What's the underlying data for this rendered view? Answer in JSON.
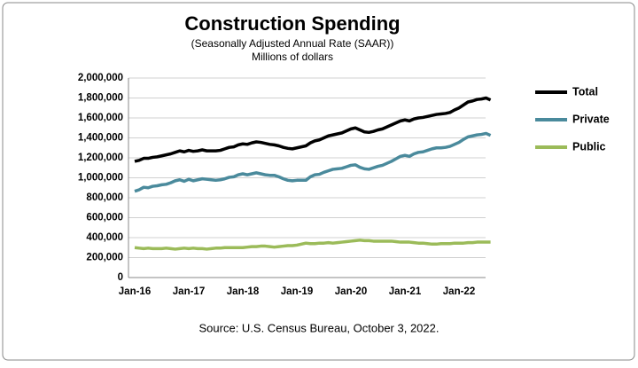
{
  "chart_data": {
    "type": "line",
    "title": "Construction Spending",
    "subtitle": "(Seasonally Adjusted Annual Rate (SAAR))",
    "y_label": "Millions of dollars",
    "source": "Source: U.S. Census Bureau, October 3, 2022.",
    "categories": [
      "Jan-16",
      null,
      null,
      null,
      null,
      null,
      null,
      null,
      null,
      null,
      null,
      null,
      "Jan-17",
      null,
      null,
      null,
      null,
      null,
      null,
      null,
      null,
      null,
      null,
      null,
      "Jan-18",
      null,
      null,
      null,
      null,
      null,
      null,
      null,
      null,
      null,
      null,
      null,
      "Jan-19",
      null,
      null,
      null,
      null,
      null,
      null,
      null,
      null,
      null,
      null,
      null,
      "Jan-20",
      null,
      null,
      null,
      null,
      null,
      null,
      null,
      null,
      null,
      null,
      null,
      "Jan-21",
      null,
      null,
      null,
      null,
      null,
      null,
      null,
      null,
      null,
      null,
      null,
      "Jan-22",
      null,
      null,
      null,
      null,
      null,
      null,
      null
    ],
    "series": [
      {
        "name": "Total",
        "color": "#000000",
        "values": [
          1165000,
          1175000,
          1195000,
          1195000,
          1205000,
          1210000,
          1220000,
          1230000,
          1240000,
          1255000,
          1270000,
          1260000,
          1275000,
          1265000,
          1270000,
          1280000,
          1270000,
          1270000,
          1270000,
          1275000,
          1290000,
          1305000,
          1310000,
          1330000,
          1340000,
          1335000,
          1350000,
          1360000,
          1355000,
          1345000,
          1335000,
          1330000,
          1320000,
          1305000,
          1295000,
          1290000,
          1300000,
          1310000,
          1320000,
          1350000,
          1370000,
          1380000,
          1400000,
          1420000,
          1430000,
          1440000,
          1450000,
          1470000,
          1490000,
          1500000,
          1480000,
          1460000,
          1455000,
          1465000,
          1480000,
          1490000,
          1510000,
          1530000,
          1550000,
          1570000,
          1580000,
          1570000,
          1590000,
          1600000,
          1605000,
          1615000,
          1625000,
          1635000,
          1640000,
          1645000,
          1655000,
          1680000,
          1700000,
          1730000,
          1760000,
          1770000,
          1785000,
          1790000,
          1800000,
          1780000
        ]
      },
      {
        "name": "Private",
        "color": "#4a8a9c",
        "values": [
          865000,
          880000,
          905000,
          900000,
          915000,
          920000,
          930000,
          935000,
          950000,
          970000,
          980000,
          965000,
          985000,
          970000,
          980000,
          990000,
          985000,
          980000,
          975000,
          980000,
          990000,
          1005000,
          1010000,
          1030000,
          1040000,
          1030000,
          1040000,
          1050000,
          1040000,
          1030000,
          1025000,
          1025000,
          1010000,
          990000,
          975000,
          970000,
          975000,
          975000,
          975000,
          1010000,
          1030000,
          1035000,
          1055000,
          1070000,
          1085000,
          1090000,
          1095000,
          1110000,
          1125000,
          1130000,
          1105000,
          1090000,
          1085000,
          1100000,
          1115000,
          1125000,
          1145000,
          1165000,
          1190000,
          1215000,
          1225000,
          1215000,
          1240000,
          1255000,
          1260000,
          1275000,
          1290000,
          1300000,
          1300000,
          1305000,
          1315000,
          1335000,
          1355000,
          1385000,
          1410000,
          1420000,
          1430000,
          1435000,
          1445000,
          1425000
        ]
      },
      {
        "name": "Public",
        "color": "#9bbb59",
        "values": [
          300000,
          295000,
          290000,
          295000,
          290000,
          290000,
          290000,
          295000,
          290000,
          285000,
          290000,
          295000,
          290000,
          295000,
          290000,
          290000,
          285000,
          290000,
          295000,
          295000,
          300000,
          300000,
          300000,
          300000,
          300000,
          305000,
          310000,
          310000,
          315000,
          315000,
          310000,
          305000,
          310000,
          315000,
          320000,
          320000,
          325000,
          335000,
          345000,
          340000,
          340000,
          345000,
          345000,
          350000,
          345000,
          350000,
          355000,
          360000,
          365000,
          370000,
          375000,
          370000,
          370000,
          365000,
          365000,
          365000,
          365000,
          365000,
          360000,
          355000,
          355000,
          355000,
          350000,
          345000,
          345000,
          340000,
          335000,
          335000,
          340000,
          340000,
          340000,
          345000,
          345000,
          345000,
          350000,
          350000,
          355000,
          355000,
          355000,
          355000
        ]
      }
    ],
    "ylim": [
      0,
      2000000
    ],
    "yticks": [
      0,
      {
        "value": 200000,
        "label": "200,000"
      },
      {
        "value": 400000,
        "label": "400,000"
      },
      {
        "value": 600000,
        "label": "600,000"
      },
      {
        "value": 800000,
        "label": "800,000"
      },
      {
        "value": 1000000,
        "label": "1,000,000"
      },
      {
        "value": 1200000,
        "label": "1,200,000"
      },
      {
        "value": 1400000,
        "label": "1,400,000"
      },
      {
        "value": 1600000,
        "label": "1,600,000"
      },
      {
        "value": 1800000,
        "label": "1,800,000"
      },
      {
        "value": 2000000,
        "label": "2,000,000"
      }
    ],
    "grid": true,
    "legend": "right"
  }
}
